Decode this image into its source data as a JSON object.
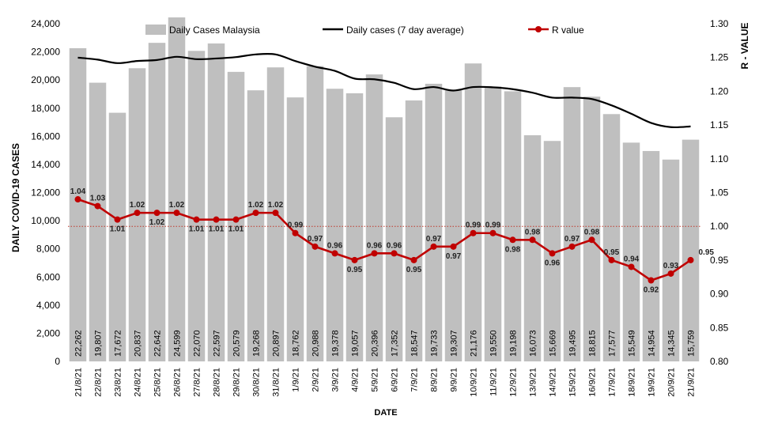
{
  "chart_data": {
    "type": "bar+line",
    "title": "",
    "xlabel": "DATE",
    "ylabel": "DAILY COVID-19 CASES",
    "y2label": "R - VALUE",
    "ylim": [
      0,
      24000
    ],
    "y_ticks": [
      "0",
      "2,000",
      "4,000",
      "6,000",
      "8,000",
      "10,000",
      "12,000",
      "14,000",
      "16,000",
      "18,000",
      "20,000",
      "22,000",
      "24,000"
    ],
    "y2lim": [
      0.8,
      1.3
    ],
    "y2_ticks": [
      "0.80",
      "0.85",
      "0.90",
      "0.95",
      "1.00",
      "1.05",
      "1.10",
      "1.15",
      "1.20",
      "1.25",
      "1.30"
    ],
    "categories": [
      "21/8/21",
      "22/8/21",
      "23/8/21",
      "24/8/21",
      "25/8/21",
      "26/8/21",
      "27/8/21",
      "28/8/21",
      "29/8/21",
      "30/8/21",
      "31/8/21",
      "1/9/21",
      "2/9/21",
      "3/9/21",
      "4/9/21",
      "5/9/21",
      "6/9/21",
      "7/9/21",
      "8/9/21",
      "9/9/21",
      "10/9/21",
      "11/9/21",
      "12/9/21",
      "13/9/21",
      "14/9/21",
      "15/9/21",
      "16/9/21",
      "17/9/21",
      "18/9/21",
      "19/9/21",
      "20/9/21",
      "21/9/21"
    ],
    "legend_position": "top",
    "grid": false,
    "reference_line": {
      "value": 1.0,
      "axis": "y2",
      "style": "dotted",
      "color": "#c0392b"
    },
    "series": [
      {
        "name": "Daily Cases Malaysia",
        "type": "bar",
        "axis": "y",
        "color": "#bfbfbf",
        "values": [
          22262,
          19807,
          17672,
          20837,
          22642,
          24599,
          22070,
          22597,
          20579,
          19268,
          20897,
          18762,
          20988,
          19378,
          19057,
          20396,
          17352,
          18547,
          19733,
          19307,
          21176,
          19550,
          19198,
          16073,
          15669,
          19495,
          18815,
          17577,
          15549,
          14954,
          14345,
          15759
        ],
        "labels": [
          "22,262",
          "19,807",
          "17,672",
          "20,837",
          "22,642",
          "24,599",
          "22,070",
          "22,597",
          "20,579",
          "19,268",
          "20,897",
          "18,762",
          "20,988",
          "19,378",
          "19,057",
          "20,396",
          "17,352",
          "18,547",
          "19,733",
          "19,307",
          "21,176",
          "19,550",
          "19,198",
          "16,073",
          "15,669",
          "19,495",
          "18,815",
          "17,577",
          "15,549",
          "14,954",
          "14,345",
          "15,759"
        ]
      },
      {
        "name": "Daily cases (7 day average)",
        "type": "line",
        "axis": "y",
        "color": "#000000",
        "values": [
          21590,
          21450,
          21200,
          21350,
          21420,
          21650,
          21480,
          21530,
          21630,
          21820,
          21820,
          21350,
          20950,
          20650,
          20100,
          20050,
          19800,
          19350,
          19500,
          19250,
          19500,
          19480,
          19350,
          19100,
          18750,
          18750,
          18650,
          18200,
          17600,
          16950,
          16650,
          16700
        ]
      },
      {
        "name": "R value",
        "type": "line",
        "axis": "y2",
        "color": "#c00000",
        "values": [
          1.04,
          1.03,
          1.01,
          1.02,
          1.02,
          1.02,
          1.01,
          1.01,
          1.01,
          1.02,
          1.02,
          0.99,
          0.97,
          0.96,
          0.95,
          0.96,
          0.96,
          0.95,
          0.97,
          0.97,
          0.99,
          0.99,
          0.98,
          0.98,
          0.96,
          0.97,
          0.98,
          0.95,
          0.94,
          0.92,
          0.93,
          0.95
        ],
        "labels": [
          "1.04",
          "1.03",
          "1.01",
          "1.02",
          "1.02",
          "1.02",
          "1.01",
          "1.01",
          "1.01",
          "1.02",
          "1.02",
          "0.99",
          "0.97",
          "0.96",
          "0.95",
          "0.96",
          "0.96",
          "0.95",
          "0.97",
          "0.97",
          "0.99",
          "0.99",
          "0.98",
          "0.98",
          "0.96",
          "0.97",
          "0.98",
          "0.95",
          "0.94",
          "0.92",
          "0.93",
          "0.95"
        ]
      }
    ]
  }
}
